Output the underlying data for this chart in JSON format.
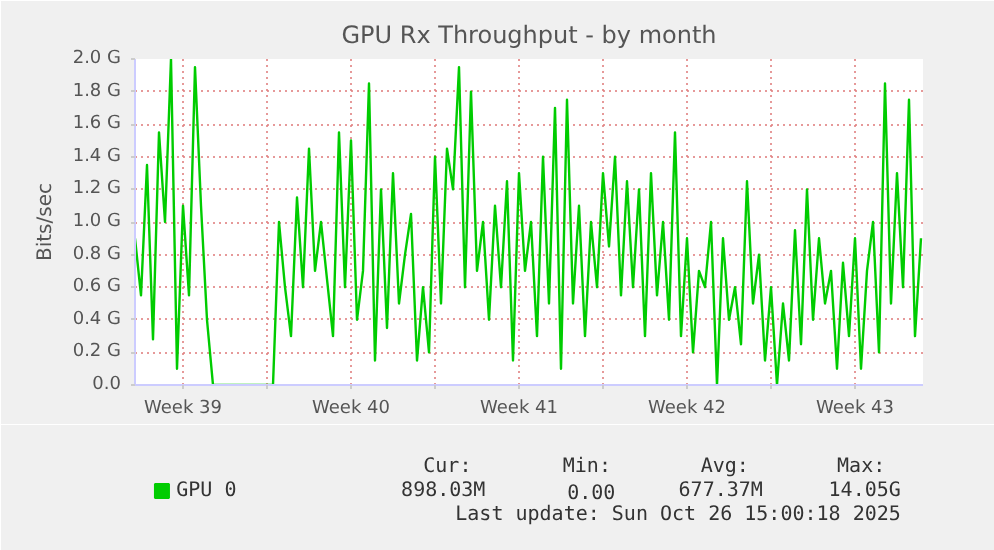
{
  "chart_data": {
    "type": "line",
    "title": "GPU Rx Throughput - by month",
    "ylabel": "Bits/sec",
    "xlim": [
      "2025-09-23T12:00",
      "2025-10-26T08:00"
    ],
    "xticks": [
      {
        "value": "2025-09-25T12:00",
        "label": "Week 39"
      },
      {
        "value": "2025-09-29T00:00",
        "label": null
      },
      {
        "value": "2025-10-02T12:00",
        "label": "Week 40"
      },
      {
        "value": "2025-10-06T00:00",
        "label": null
      },
      {
        "value": "2025-10-09T12:00",
        "label": "Week 41"
      },
      {
        "value": "2025-10-13T00:00",
        "label": null
      },
      {
        "value": "2025-10-16T12:00",
        "label": "Week 42"
      },
      {
        "value": "2025-10-20T00:00",
        "label": null
      },
      {
        "value": "2025-10-23T12:00",
        "label": "Week 43"
      }
    ],
    "ylim": [
      0,
      2.0
    ],
    "yticks": [
      {
        "value": 0,
        "label": "0.0"
      },
      {
        "value": 0.2,
        "label": "0.2 G"
      },
      {
        "value": 0.4,
        "label": "0.4 G"
      },
      {
        "value": 0.6,
        "label": "0.6 G"
      },
      {
        "value": 0.8,
        "label": "0.8 G"
      },
      {
        "value": 1.0,
        "label": "1.0 G"
      },
      {
        "value": 1.2,
        "label": "1.2 G"
      },
      {
        "value": 1.4,
        "label": "1.4 G"
      },
      {
        "value": 1.6,
        "label": "1.6 G"
      },
      {
        "value": 1.8,
        "label": "1.8 G"
      },
      {
        "value": 2.0,
        "label": "2.0 G"
      }
    ],
    "grid": true,
    "legend": "bottom left",
    "marker": "none",
    "line_style": "solid",
    "series": [
      {
        "name": "GPU 0",
        "color": "#00cc00",
        "x": [
          "2025-09-23T12:00",
          "2025-09-23T18:00",
          "2025-09-24T00:00",
          "2025-09-24T06:00",
          "2025-09-24T12:00",
          "2025-09-24T18:00",
          "2025-09-25T00:00",
          "2025-09-25T06:00",
          "2025-09-25T12:00",
          "2025-09-25T18:00",
          "2025-09-26T00:00",
          "2025-09-26T06:00",
          "2025-09-26T12:00",
          "2025-09-26T18:00",
          "2025-09-27T12:00",
          "2025-09-28T12:00",
          "2025-09-29T06:00",
          "2025-09-29T12:00",
          "2025-09-29T18:00",
          "2025-09-30T00:00",
          "2025-09-30T06:00",
          "2025-09-30T12:00",
          "2025-09-30T18:00",
          "2025-10-01T00:00",
          "2025-10-01T06:00",
          "2025-10-01T12:00",
          "2025-10-01T18:00",
          "2025-10-02T00:00",
          "2025-10-02T06:00",
          "2025-10-02T12:00",
          "2025-10-02T18:00",
          "2025-10-03T00:00",
          "2025-10-03T06:00",
          "2025-10-03T12:00",
          "2025-10-03T18:00",
          "2025-10-04T00:00",
          "2025-10-04T06:00",
          "2025-10-04T12:00",
          "2025-10-04T18:00",
          "2025-10-05T00:00",
          "2025-10-05T06:00",
          "2025-10-05T12:00",
          "2025-10-05T18:00",
          "2025-10-06T00:00",
          "2025-10-06T06:00",
          "2025-10-06T12:00",
          "2025-10-06T18:00",
          "2025-10-07T00:00",
          "2025-10-07T06:00",
          "2025-10-07T12:00",
          "2025-10-07T18:00",
          "2025-10-08T00:00",
          "2025-10-08T06:00",
          "2025-10-08T12:00",
          "2025-10-08T18:00",
          "2025-10-09T00:00",
          "2025-10-09T06:00",
          "2025-10-09T12:00",
          "2025-10-09T18:00",
          "2025-10-10T00:00",
          "2025-10-10T06:00",
          "2025-10-10T12:00",
          "2025-10-10T18:00",
          "2025-10-11T00:00",
          "2025-10-11T06:00",
          "2025-10-11T12:00",
          "2025-10-11T18:00",
          "2025-10-12T00:00",
          "2025-10-12T06:00",
          "2025-10-12T12:00",
          "2025-10-12T18:00",
          "2025-10-13T00:00",
          "2025-10-13T06:00",
          "2025-10-13T12:00",
          "2025-10-13T18:00",
          "2025-10-14T00:00",
          "2025-10-14T06:00",
          "2025-10-14T12:00",
          "2025-10-14T18:00",
          "2025-10-15T00:00",
          "2025-10-15T06:00",
          "2025-10-15T12:00",
          "2025-10-15T18:00",
          "2025-10-16T00:00",
          "2025-10-16T06:00",
          "2025-10-16T12:00",
          "2025-10-16T18:00",
          "2025-10-17T00:00",
          "2025-10-17T06:00",
          "2025-10-17T12:00",
          "2025-10-17T18:00",
          "2025-10-18T00:00",
          "2025-10-18T06:00",
          "2025-10-18T12:00",
          "2025-10-18T18:00",
          "2025-10-19T00:00",
          "2025-10-19T06:00",
          "2025-10-19T12:00",
          "2025-10-19T18:00",
          "2025-10-20T00:00",
          "2025-10-20T06:00",
          "2025-10-20T12:00",
          "2025-10-20T18:00",
          "2025-10-21T00:00",
          "2025-10-21T06:00",
          "2025-10-21T12:00",
          "2025-10-21T18:00",
          "2025-10-22T00:00",
          "2025-10-22T06:00",
          "2025-10-22T12:00",
          "2025-10-22T18:00",
          "2025-10-23T00:00",
          "2025-10-23T06:00",
          "2025-10-23T12:00",
          "2025-10-23T18:00",
          "2025-10-24T00:00",
          "2025-10-24T06:00",
          "2025-10-24T12:00",
          "2025-10-24T18:00",
          "2025-10-25T00:00",
          "2025-10-25T06:00",
          "2025-10-25T12:00",
          "2025-10-25T18:00",
          "2025-10-26T00:00",
          "2025-10-26T06:00"
        ],
        "values": [
          0.9,
          0.55,
          1.35,
          0.28,
          1.55,
          1.0,
          2.0,
          0.1,
          1.1,
          0.55,
          1.95,
          1.1,
          0.4,
          0.0,
          0.0,
          0.0,
          0.0,
          1.0,
          0.6,
          0.3,
          1.15,
          0.6,
          1.45,
          0.7,
          1.0,
          0.65,
          0.3,
          1.55,
          0.6,
          1.5,
          0.4,
          0.7,
          1.85,
          0.15,
          1.2,
          0.35,
          1.3,
          0.5,
          0.8,
          1.05,
          0.15,
          0.6,
          0.2,
          1.4,
          0.5,
          1.45,
          1.2,
          1.95,
          0.6,
          1.8,
          0.7,
          1.0,
          0.4,
          1.1,
          0.6,
          1.25,
          0.15,
          1.3,
          0.7,
          1.0,
          0.3,
          1.4,
          0.5,
          1.7,
          0.1,
          1.75,
          0.5,
          1.1,
          0.3,
          1.0,
          0.6,
          1.3,
          0.85,
          1.4,
          0.55,
          1.25,
          0.6,
          1.2,
          0.3,
          1.3,
          0.55,
          1.0,
          0.4,
          1.55,
          0.3,
          0.9,
          0.2,
          0.7,
          0.6,
          1.0,
          0.0,
          0.9,
          0.4,
          0.6,
          0.25,
          1.25,
          0.5,
          0.8,
          0.15,
          0.6,
          0.0,
          0.5,
          0.15,
          0.95,
          0.25,
          1.2,
          0.4,
          0.9,
          0.5,
          0.7,
          0.1,
          0.75,
          0.3,
          0.9,
          0.1,
          0.7,
          1.0,
          0.2,
          1.85,
          0.5,
          1.3,
          0.6,
          1.75,
          0.3,
          0.9
        ]
      }
    ],
    "annotations": [
      "Cur:",
      "Min:",
      "Avg:",
      "Max:",
      "898.03M",
      "0.00",
      "677.37M",
      "14.05G",
      "Last update: Sun Oct 26 15:00:18 2025"
    ]
  }
}
